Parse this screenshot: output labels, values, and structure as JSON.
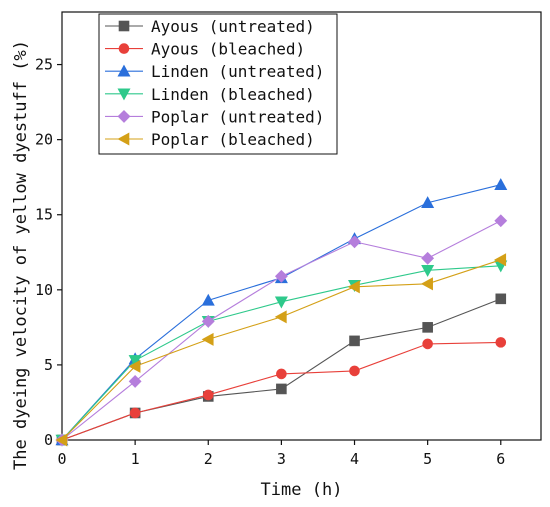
{
  "chart_data": {
    "type": "line",
    "title": "",
    "xlabel": "Time (h)",
    "ylabel": "The dyeing velocity of yellow dyestuff (%)",
    "xlim": [
      0,
      6.55
    ],
    "ylim": [
      0,
      28.5
    ],
    "xticks": [
      0,
      1,
      2,
      3,
      4,
      5,
      6
    ],
    "yticks": [
      0,
      5,
      10,
      15,
      20,
      25
    ],
    "legend_position": "top-left",
    "grid": false,
    "x": [
      0,
      1,
      2,
      3,
      4,
      5,
      6
    ],
    "series": [
      {
        "name": "Ayous (untreated)",
        "color": "#555555",
        "marker": "square",
        "values": [
          0,
          1.8,
          2.9,
          3.4,
          6.6,
          7.5,
          9.4
        ]
      },
      {
        "name": "Ayous (bleached)",
        "color": "#e8403a",
        "marker": "circle",
        "values": [
          0,
          1.8,
          3.0,
          4.4,
          4.6,
          6.4,
          6.5
        ]
      },
      {
        "name": "Linden (untreated)",
        "color": "#2a6fdb",
        "marker": "triangle-up",
        "values": [
          0,
          5.4,
          9.3,
          10.8,
          13.4,
          15.8,
          17.0
        ]
      },
      {
        "name": "Linden (bleached)",
        "color": "#2ec98b",
        "marker": "triangle-down",
        "values": [
          0,
          5.3,
          7.9,
          9.2,
          10.3,
          11.3,
          11.6
        ]
      },
      {
        "name": "Poplar (untreated)",
        "color": "#b57edc",
        "marker": "diamond",
        "values": [
          0,
          3.9,
          7.9,
          10.9,
          13.2,
          12.1,
          14.6
        ]
      },
      {
        "name": "Poplar (bleached)",
        "color": "#d4a017",
        "marker": "triangle-left",
        "values": [
          0,
          4.9,
          6.7,
          8.2,
          10.2,
          10.4,
          12.0
        ]
      }
    ]
  }
}
